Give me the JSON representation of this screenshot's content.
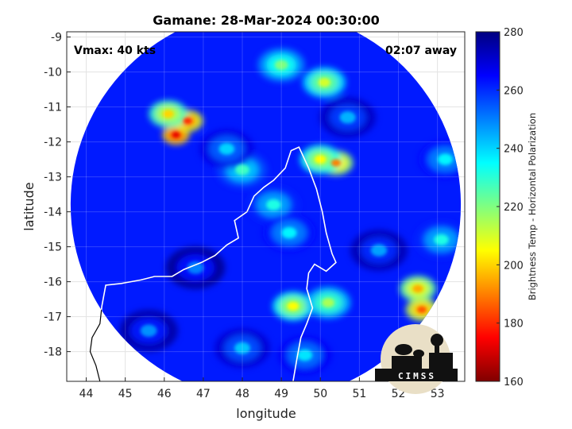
{
  "chart_data": {
    "type": "heatmap",
    "title": "Gamane: 28-Mar-2024 00:30:00",
    "annotations": {
      "vmax": "Vmax: 40 kts",
      "time_away": "02:07 away"
    },
    "xlabel": "longitude",
    "ylabel": "latitude",
    "xlim": [
      43.5,
      53.7
    ],
    "ylim": [
      -18.85,
      -8.85
    ],
    "xticks": [
      44,
      45,
      46,
      47,
      48,
      49,
      50,
      51,
      52,
      53
    ],
    "yticks": [
      -9,
      -10,
      -11,
      -12,
      -13,
      -14,
      -15,
      -16,
      -17,
      -18
    ],
    "grid": true,
    "swath": {
      "center": [
        48.6,
        -13.8
      ],
      "radius_deg": 5.0
    },
    "storm_center": [
      48.6,
      -14.0
    ],
    "colorbar": {
      "label": "Brightness Temp - Horizontal Polarization",
      "range": [
        160,
        280
      ],
      "ticks": [
        280,
        260,
        240,
        220,
        200,
        180,
        160
      ],
      "colormap": "jet"
    },
    "cold_cells": [
      {
        "lon": 46.3,
        "lat": -11.8,
        "value": 172
      },
      {
        "lon": 46.6,
        "lat": -11.4,
        "value": 180
      },
      {
        "lon": 46.1,
        "lat": -11.2,
        "value": 200
      },
      {
        "lon": 50.4,
        "lat": -12.6,
        "value": 190
      },
      {
        "lon": 50.0,
        "lat": -12.5,
        "value": 205
      },
      {
        "lon": 52.5,
        "lat": -16.2,
        "value": 195
      },
      {
        "lon": 52.6,
        "lat": -16.8,
        "value": 185
      },
      {
        "lon": 49.3,
        "lat": -16.7,
        "value": 205
      },
      {
        "lon": 50.2,
        "lat": -16.6,
        "value": 215
      },
      {
        "lon": 50.1,
        "lat": -10.3,
        "value": 210
      },
      {
        "lon": 49.0,
        "lat": -9.8,
        "value": 220
      },
      {
        "lon": 48.0,
        "lat": -12.8,
        "value": 228
      },
      {
        "lon": 48.8,
        "lat": -13.8,
        "value": 232
      },
      {
        "lon": 49.2,
        "lat": -14.6,
        "value": 236
      },
      {
        "lon": 47.6,
        "lat": -12.2,
        "value": 240
      },
      {
        "lon": 49.6,
        "lat": -18.1,
        "value": 238
      },
      {
        "lon": 48.0,
        "lat": -17.9,
        "value": 242
      },
      {
        "lon": 53.1,
        "lat": -14.8,
        "value": 232
      },
      {
        "lon": 53.2,
        "lat": -12.5,
        "value": 236
      },
      {
        "lon": 45.6,
        "lat": -17.4,
        "value": 248
      },
      {
        "lon": 46.8,
        "lat": -15.6,
        "value": 250
      },
      {
        "lon": 51.5,
        "lat": -15.1,
        "value": 246
      },
      {
        "lon": 50.7,
        "lat": -11.3,
        "value": 244
      }
    ],
    "coastline": [
      [
        48.12,
        -14.0
      ],
      [
        48.3,
        -13.55
      ],
      [
        48.55,
        -13.3
      ],
      [
        48.8,
        -13.1
      ],
      [
        49.1,
        -12.75
      ],
      [
        49.25,
        -12.25
      ],
      [
        49.45,
        -12.15
      ],
      [
        49.7,
        -12.75
      ],
      [
        49.9,
        -13.35
      ],
      [
        50.05,
        -14.0
      ],
      [
        50.15,
        -14.6
      ],
      [
        50.3,
        -15.2
      ],
      [
        50.4,
        -15.45
      ],
      [
        50.15,
        -15.7
      ],
      [
        49.85,
        -15.5
      ],
      [
        49.7,
        -15.75
      ],
      [
        49.65,
        -16.2
      ],
      [
        49.8,
        -16.75
      ],
      [
        49.65,
        -17.2
      ],
      [
        49.5,
        -17.6
      ],
      [
        49.4,
        -18.2
      ],
      [
        49.3,
        -18.85
      ]
    ],
    "coastline_west": [
      [
        48.12,
        -14.0
      ],
      [
        47.8,
        -14.25
      ],
      [
        47.9,
        -14.75
      ],
      [
        47.6,
        -14.95
      ],
      [
        47.3,
        -15.25
      ],
      [
        46.95,
        -15.45
      ],
      [
        46.5,
        -15.65
      ],
      [
        46.2,
        -15.85
      ],
      [
        45.75,
        -15.85
      ],
      [
        45.4,
        -15.95
      ],
      [
        44.9,
        -16.05
      ],
      [
        44.5,
        -16.1
      ],
      [
        44.4,
        -16.7
      ],
      [
        44.35,
        -17.2
      ],
      [
        44.15,
        -17.6
      ],
      [
        44.1,
        -18.0
      ],
      [
        44.25,
        -18.4
      ],
      [
        44.35,
        -18.85
      ]
    ],
    "logo": "CIMSS"
  }
}
